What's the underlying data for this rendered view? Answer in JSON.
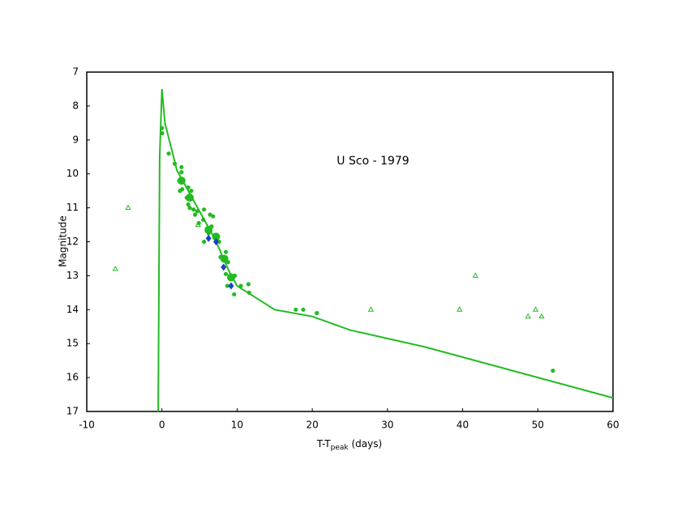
{
  "chart_data": {
    "type": "scatter",
    "annotation": "U Sco - 1979",
    "xlabel": [
      "T-T",
      "peak",
      " (days)"
    ],
    "ylabel": "Magnitude",
    "xlim": [
      -10,
      60
    ],
    "xticks": [
      -10,
      0,
      10,
      20,
      30,
      40,
      50,
      60
    ],
    "ylim": [
      17,
      7
    ],
    "yticks": [
      7,
      8,
      9,
      10,
      11,
      12,
      13,
      14,
      15,
      16,
      17
    ],
    "grid": false,
    "series": [
      {
        "marker": "line",
        "color": "#22bb22",
        "x": [
          -0.5,
          -0.3,
          0,
          0.4,
          2,
          5,
          7,
          9,
          10,
          15,
          20,
          25,
          35,
          60
        ],
        "values": [
          17,
          9.5,
          7.5,
          8.5,
          9.9,
          11.1,
          11.9,
          12.9,
          13.3,
          14,
          14.2,
          14.6,
          15.1,
          16.6
        ]
      },
      {
        "marker": "circle",
        "color": "#22bb22",
        "x": [
          0,
          0.03,
          0.9,
          1.7,
          2.3,
          2.6,
          2.6,
          2.7,
          2.4,
          3.5,
          3.9,
          3.3,
          3.5,
          3.7,
          4.2,
          4.4,
          4.7,
          4.9,
          5.6,
          5.5,
          6.4,
          6.6,
          5.6,
          6.8,
          6.2,
          7.6,
          7.8,
          8.5,
          8.8,
          8.5,
          8.7,
          9.7,
          9.6,
          10.5,
          11.5,
          11.6,
          17.8,
          18.8,
          20.6,
          52.0
        ],
        "values": [
          8.65,
          8.8,
          9.4,
          9.7,
          10.2,
          9.95,
          9.8,
          10.45,
          10.5,
          10.4,
          10.5,
          10.7,
          10.9,
          11.0,
          11.05,
          11.2,
          11.1,
          11.45,
          11.05,
          11.35,
          11.2,
          11.55,
          12.0,
          11.25,
          11.75,
          12.0,
          12.45,
          12.3,
          12.6,
          12.95,
          13.3,
          13.0,
          13.55,
          13.3,
          13.25,
          13.5,
          14.0,
          14.0,
          14.1,
          15.8
        ]
      },
      {
        "marker": "big-circle",
        "color": "#22bb22",
        "x": [
          2.6,
          3.7,
          6.2,
          7.2,
          8.3,
          9.2
        ],
        "values": [
          10.2,
          10.7,
          11.65,
          11.85,
          12.5,
          13.05
        ]
      },
      {
        "marker": "diamond",
        "color": "#1a3fd0",
        "x": [
          6.2,
          7.2,
          8.2,
          9.2
        ],
        "values": [
          11.9,
          12.0,
          12.75,
          13.3
        ]
      },
      {
        "marker": "triangle",
        "color": "#22bb22",
        "x": [
          -6.2,
          -4.5,
          4.8,
          27.8,
          39.6,
          41.7,
          48.7,
          49.7,
          50.5
        ],
        "values": [
          12.8,
          11.0,
          11.5,
          14.0,
          14.0,
          13.0,
          14.2,
          14.0,
          14.2
        ]
      }
    ]
  }
}
